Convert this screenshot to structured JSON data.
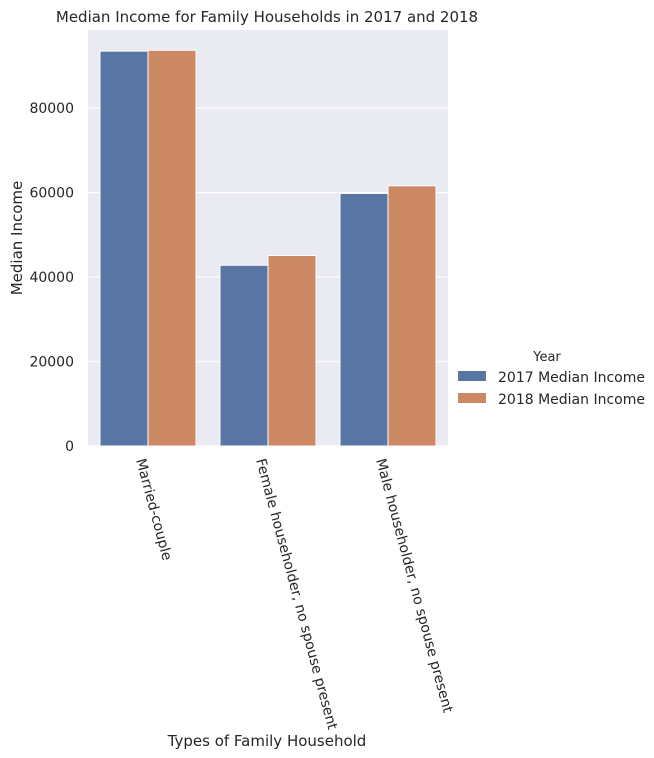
{
  "chart_data": {
    "type": "bar",
    "title": "Median Income for Family Households in 2017  and 2018",
    "xlabel": "Types of Family Household",
    "ylabel": "Median Income",
    "categories": [
      "Married-couple",
      "Female householder, no spouse present",
      "Male householder, no spouse present"
    ],
    "series": [
      {
        "name": "2017 Median Income",
        "values": [
          93500,
          42800,
          59800
        ],
        "color": "#5975a4"
      },
      {
        "name": "2018 Median Income",
        "values": [
          93700,
          45100,
          61600
        ],
        "color": "#cc8963"
      }
    ],
    "ylim": [
      0,
      98500
    ],
    "yticks": [
      0,
      20000,
      40000,
      60000,
      80000
    ],
    "ytick_labels": [
      "0",
      "20000",
      "40000",
      "60000",
      "80000"
    ],
    "legend_title": "Year",
    "legend_position": "right",
    "grid": true,
    "background": "#eaeaf2",
    "grid_color": "#ffffff"
  }
}
